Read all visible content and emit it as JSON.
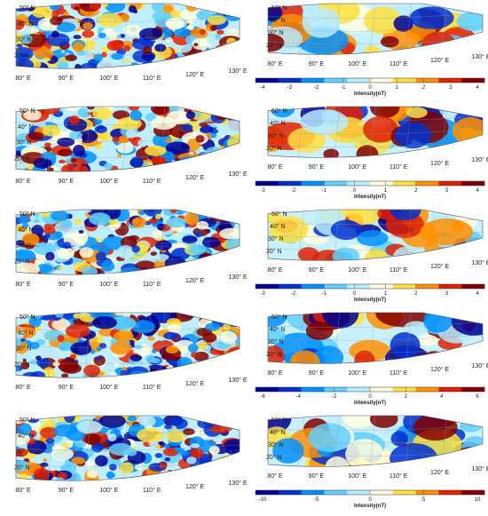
{
  "rows": [
    {
      "left": {
        "lat_labels": [
          "50° N",
          "40° N",
          "30° N",
          "20° N"
        ],
        "lon_labels": [
          "80° E",
          "90° E",
          "100° E",
          "110° E",
          "120° E",
          "130° E"
        ]
      },
      "right": {
        "lat_labels": [
          "50° N",
          "40° N",
          "30° N",
          "20° N"
        ],
        "lon_labels": [
          "80° E",
          "90° E",
          "100° E",
          "110° E",
          "120° E",
          "130° E"
        ]
      },
      "colorbar": {
        "ticks": [
          "-4",
          "-3",
          "-2",
          "-1",
          "0",
          "1",
          "2",
          "3",
          "4"
        ],
        "title": "Intensity(nT)"
      }
    },
    {
      "left": {
        "lat_labels": [
          "50° N",
          "40° N",
          "30° N",
          "20° N"
        ],
        "lon_labels": [
          "80° E",
          "90° E",
          "100° E",
          "110° E",
          "120° E",
          "130° E"
        ]
      },
      "right": {
        "lat_labels": [
          "50° N",
          "40° N",
          "30° N",
          "20° N"
        ],
        "lon_labels": [
          "80° E",
          "90° E",
          "100° E",
          "110° E",
          "120° E",
          "130° E"
        ]
      },
      "colorbar": {
        "ticks": [
          "-3",
          "-2",
          "-1",
          "0",
          "1",
          "2",
          "3",
          "4"
        ],
        "title": "Intensity(nT)"
      }
    },
    {
      "left": {
        "lat_labels": [
          "50° N",
          "40° N",
          "30° N",
          "20° N"
        ],
        "lon_labels": [
          "80° E",
          "90° E",
          "100° E",
          "110° E",
          "120° E",
          "130° E"
        ]
      },
      "right": {
        "lat_labels": [
          "50° N",
          "40° N",
          "30° N",
          "20° N"
        ],
        "lon_labels": [
          "80° E",
          "90° E",
          "100° E",
          "110° E",
          "120° E",
          "130° E"
        ]
      },
      "colorbar": {
        "ticks": [
          "-3",
          "-2",
          "-1",
          "0",
          "1",
          "2",
          "3",
          "4"
        ],
        "title": "Intensity(nT)"
      }
    },
    {
      "left": {
        "lat_labels": [
          "50° N",
          "40° N",
          "30° N",
          "20° N"
        ],
        "lon_labels": [
          "80° E",
          "90° E",
          "100° E",
          "110° E",
          "120° E",
          "130° E"
        ]
      },
      "right": {
        "lat_labels": [
          "50° N",
          "40° N",
          "30° N",
          "20° N"
        ],
        "lon_labels": [
          "80° E",
          "90° E",
          "100° E",
          "110° E",
          "120° E",
          "130° E"
        ]
      },
      "colorbar": {
        "ticks": [
          "-6",
          "-4",
          "-2",
          "0",
          "2",
          "4",
          "6"
        ],
        "title": "Intensity(nT)"
      }
    },
    {
      "left": {
        "lat_labels": [
          "50° N",
          "40° N",
          "30° N",
          "20° N"
        ],
        "lon_labels": [
          "80° E",
          "90° E",
          "100° E",
          "110° E",
          "120° E",
          "130° E"
        ]
      },
      "right": {
        "lat_labels": [
          "50° N",
          "40° N",
          "30° N",
          "20° N"
        ],
        "lon_labels": [
          "80° E",
          "90° E",
          "100° E",
          "110° E",
          "120° E",
          "130° E"
        ]
      },
      "colorbar": {
        "ticks": [
          "-10",
          "-5",
          "0",
          "5",
          "10"
        ],
        "title": "Intensity(nT)"
      }
    }
  ],
  "colors": {
    "scale": [
      "#00008f",
      "#0030d0",
      "#0090ff",
      "#60d0ff",
      "#b8ecff",
      "#ffffe0",
      "#ffe040",
      "#ff9000",
      "#e02000",
      "#800000"
    ]
  }
}
